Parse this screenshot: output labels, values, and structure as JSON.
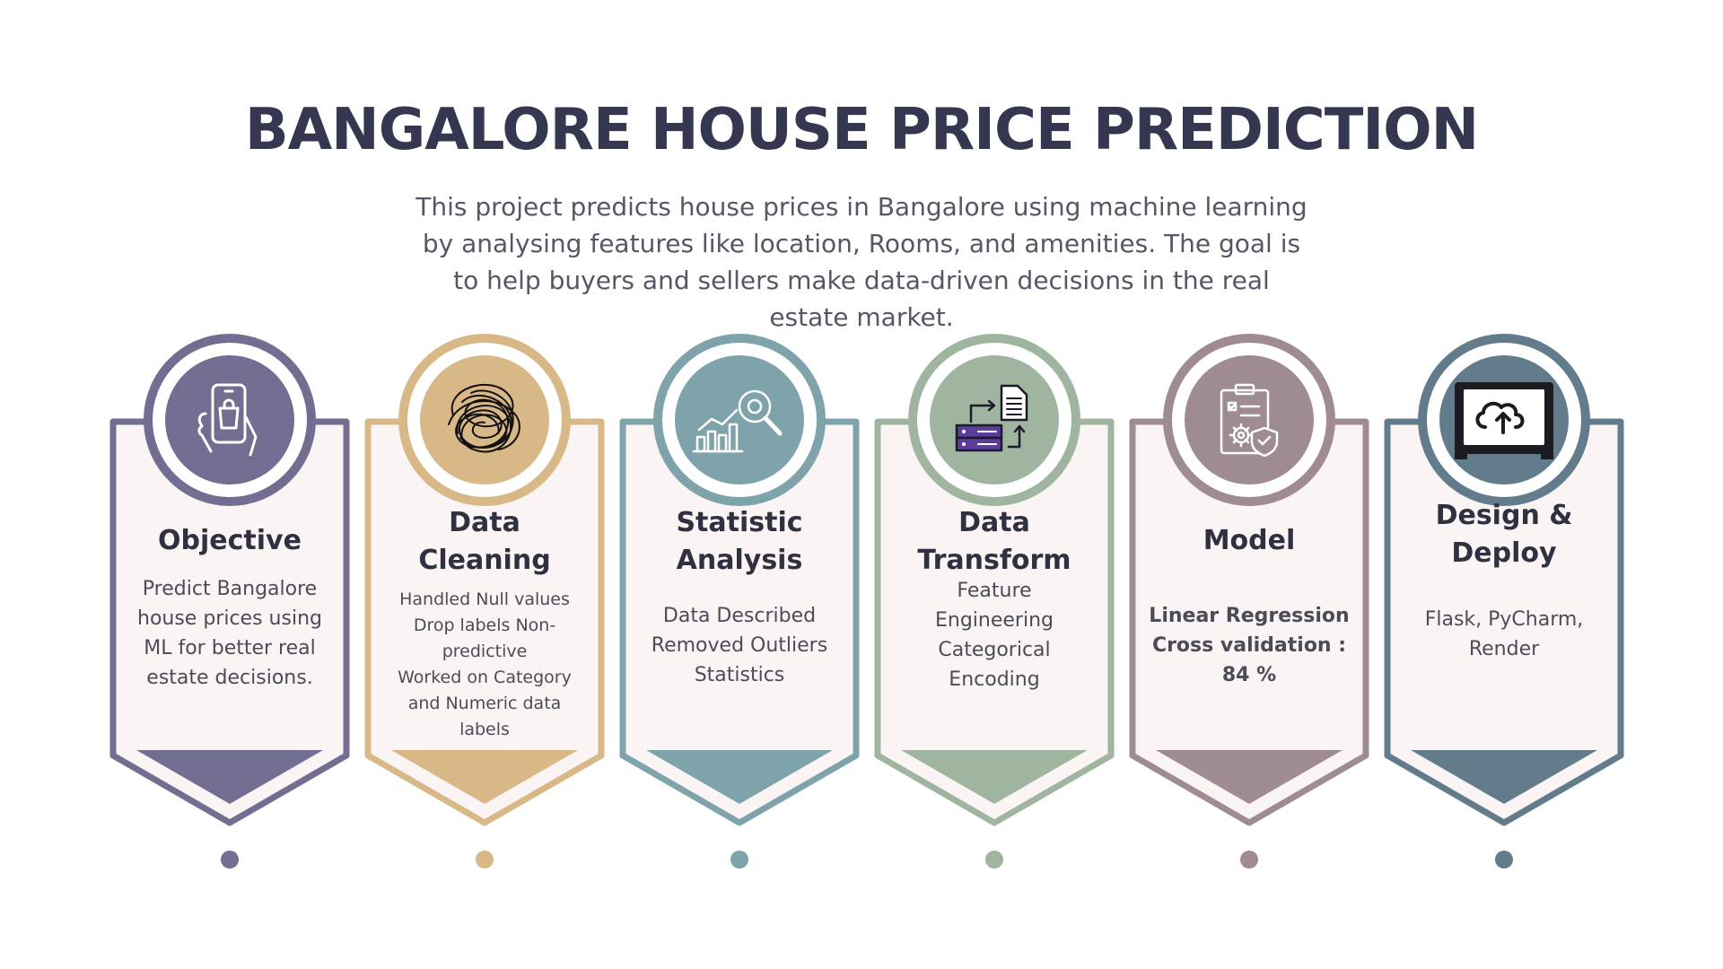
{
  "title": "BANGALORE HOUSE PRICE PREDICTION",
  "subtitle": "This project predicts house prices in Bangalore using machine learning by analysing features like location, Rooms, and amenities. The goal is to help buyers and sellers make data-driven decisions in the real estate market.",
  "steps": [
    {
      "title_lines": [
        "Objective"
      ],
      "body_lines": [
        "Predict Bangalore",
        "house prices using",
        "ML for better real",
        "estate decisions."
      ],
      "icon": "smartphone-shopping-bag-icon",
      "color": "#726e91"
    },
    {
      "title_lines": [
        "Data",
        "Cleaning"
      ],
      "body_lines": [
        "Handled Null values",
        "Drop labels Non-",
        "predictive",
        "Worked on Category",
        "and Numeric data",
        "labels"
      ],
      "icon": "tangled-scribble-icon",
      "color": "#d9b887"
    },
    {
      "title_lines": [
        "Statistic",
        "Analysis"
      ],
      "body_lines": [
        "Data Described",
        "Removed Outliers",
        "Statistics"
      ],
      "icon": "bar-chart-magnifier-icon",
      "color": "#7fa3ab"
    },
    {
      "title_lines": [
        "Data",
        "Transform"
      ],
      "body_lines": [
        "Feature",
        "Engineering",
        "Categorical",
        "Encoding"
      ],
      "icon": "server-document-transfer-icon",
      "color": "#a0b59f"
    },
    {
      "title_lines": [
        "Model"
      ],
      "body_lines": [
        "Linear Regression",
        "Cross validation :",
        "84 %"
      ],
      "icon": "clipboard-gear-shield-icon",
      "color": "#9f8b94"
    },
    {
      "title_lines": [
        "Design &",
        "Deploy"
      ],
      "body_lines": [
        "Flask, PyCharm,",
        "Render"
      ],
      "icon": "cloud-upload-monitor-icon",
      "color": "#637c8b"
    }
  ]
}
